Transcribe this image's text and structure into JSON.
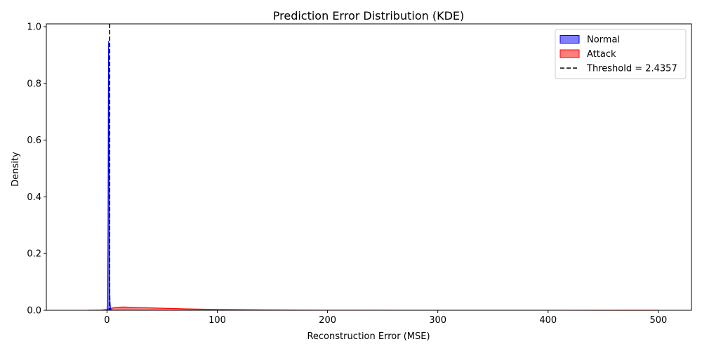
{
  "chart_data": {
    "type": "area",
    "title": "Prediction Error Distribution (KDE)",
    "xlabel": "Reconstruction Error (MSE)",
    "ylabel": "Density",
    "xlim": [
      -55,
      530
    ],
    "ylim": [
      0,
      1.01
    ],
    "xticks": [
      0,
      100,
      200,
      300,
      400,
      500
    ],
    "yticks": [
      0.0,
      0.2,
      0.4,
      0.6,
      0.8,
      1.0
    ],
    "xtick_labels": [
      "0",
      "100",
      "200",
      "300",
      "400",
      "500"
    ],
    "ytick_labels": [
      "0.0",
      "0.2",
      "0.4",
      "0.6",
      "0.8",
      "1.0"
    ],
    "grid": false,
    "legend_position": "top-right",
    "series": [
      {
        "name": "Normal",
        "color": "#0000ff",
        "x": [
          0,
          0.6,
          1.0,
          1.3,
          1.5,
          1.7,
          2.0,
          2.3,
          2.7,
          3.2,
          4.0,
          5.0
        ],
        "y": [
          0.0,
          0.02,
          0.3,
          0.8,
          0.95,
          0.85,
          0.4,
          0.12,
          0.03,
          0.005,
          0.001,
          0.0
        ]
      },
      {
        "name": "Attack",
        "color": "#ff0000",
        "x": [
          -17,
          -5,
          0,
          3,
          6,
          10,
          15,
          20,
          30,
          50,
          70,
          100,
          150,
          200,
          300,
          400,
          500
        ],
        "y": [
          0.0,
          0.001,
          0.003,
          0.006,
          0.009,
          0.011,
          0.0115,
          0.011,
          0.0098,
          0.0072,
          0.005,
          0.003,
          0.0012,
          0.0005,
          0.0002,
          0.0001,
          0.0
        ]
      }
    ],
    "threshold": {
      "label": "Threshold = 2.4357",
      "value": 2.4357,
      "color": "#000000",
      "style": "dashed"
    }
  }
}
